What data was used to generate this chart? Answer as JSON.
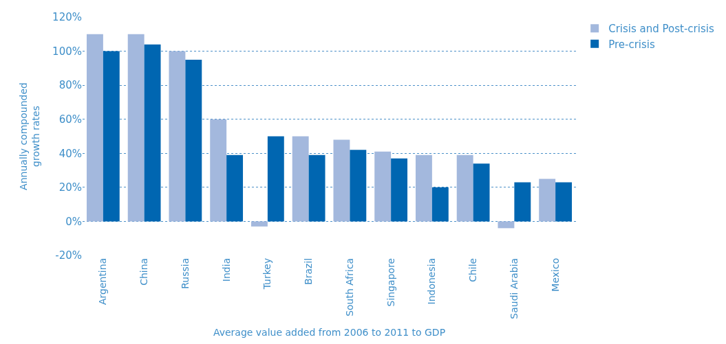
{
  "chart_data": {
    "type": "bar",
    "xlabel": "Average value added from 2006 to 2011 to GDP",
    "ylabel": "Annually compounded\ngrowth rates",
    "categories": [
      "Argentina",
      "China",
      "Russia",
      "India",
      "Turkey",
      "Brazil",
      "South Africa",
      "Singapore",
      "Indonesia",
      "Chile",
      "Saudi Arabia",
      "Mexico"
    ],
    "series": [
      {
        "name": "Crisis and Post-crisis",
        "color": "#a3b8dd",
        "values": [
          110,
          110,
          100,
          60,
          -3,
          50,
          48,
          41,
          39,
          39,
          -4,
          25
        ]
      },
      {
        "name": "Pre-crisis",
        "color": "#0066b1",
        "values": [
          100,
          104,
          95,
          39,
          50,
          39,
          42,
          37,
          20,
          34,
          23,
          23
        ]
      }
    ],
    "ylim": [
      -20,
      120
    ],
    "yticks": [
      {
        "value": -20,
        "label": "-20%"
      },
      {
        "value": 0,
        "label": "0%"
      },
      {
        "value": 20,
        "label": "20%"
      },
      {
        "value": 40,
        "label": "40%"
      },
      {
        "value": 60,
        "label": "60%"
      },
      {
        "value": 80,
        "label": "80%"
      },
      {
        "value": 100,
        "label": "100%"
      },
      {
        "value": 120,
        "label": "120%"
      }
    ],
    "grid": "y",
    "legend": "top right"
  }
}
